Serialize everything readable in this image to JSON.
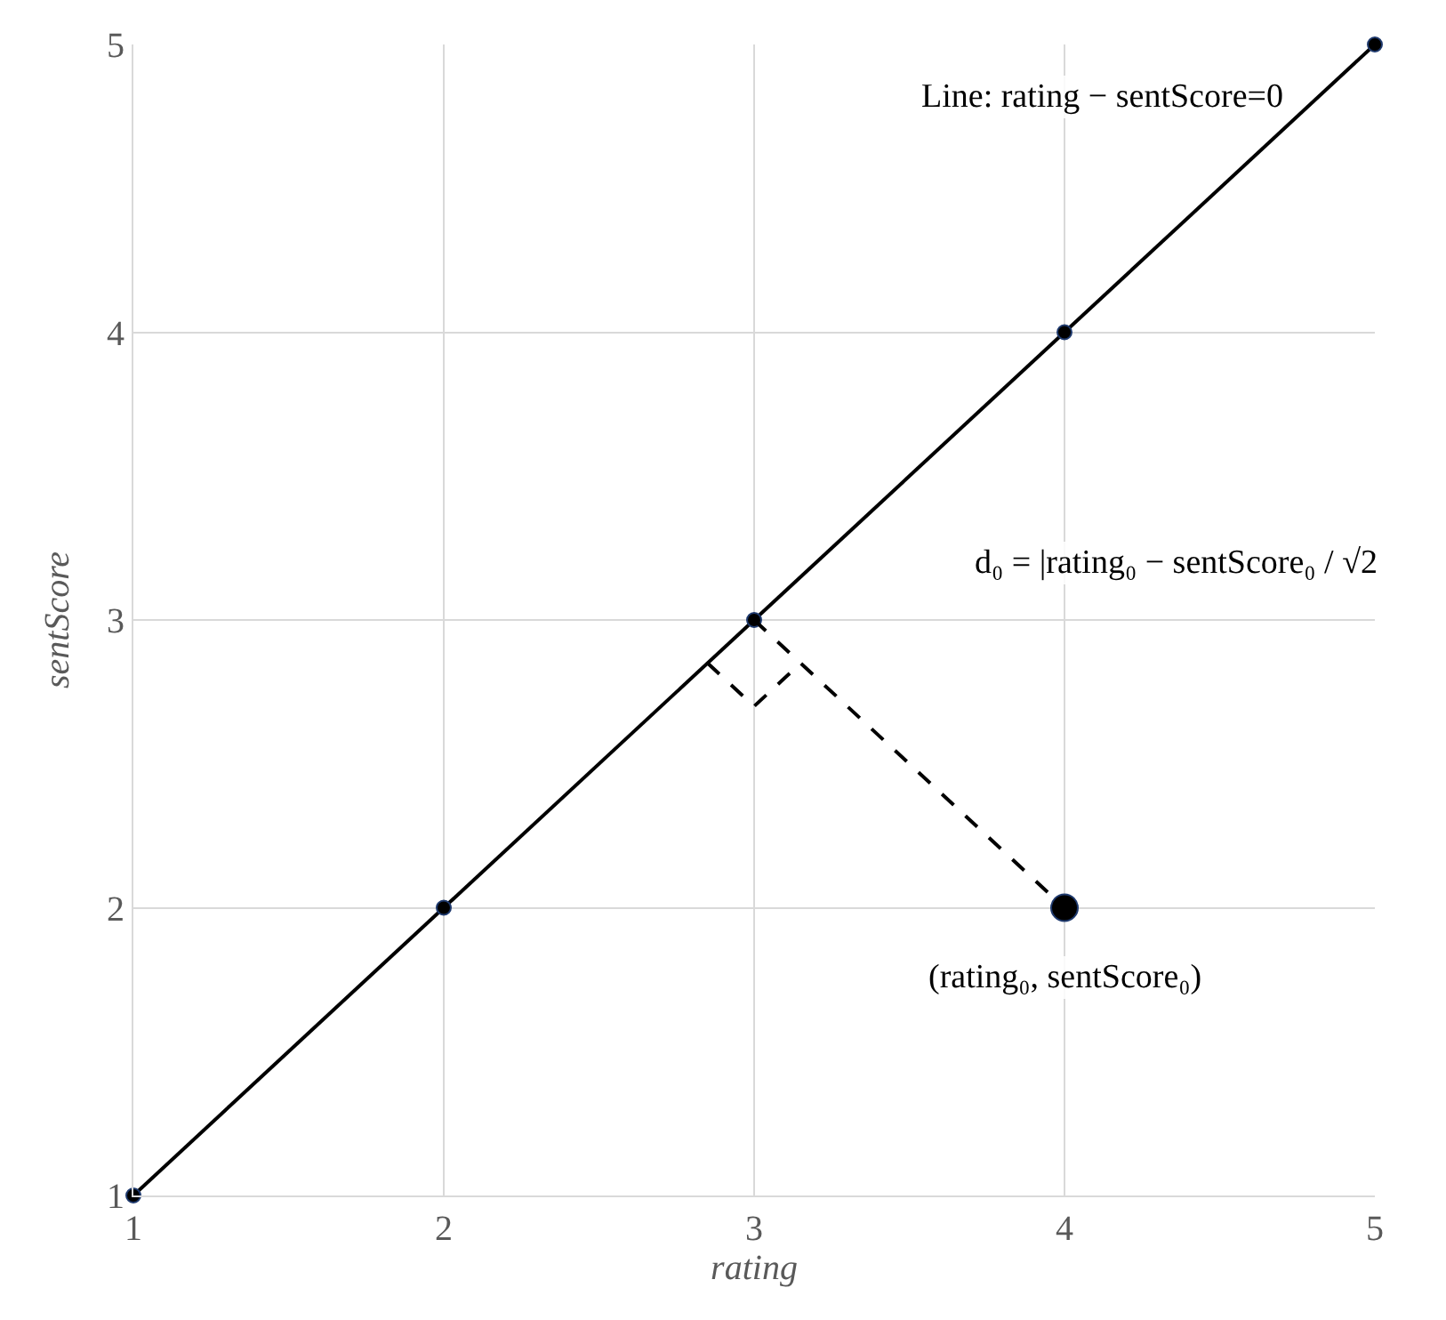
{
  "chart_data": {
    "type": "line",
    "xlabel": "rating",
    "ylabel": "sentScore",
    "xlim": [
      1,
      5
    ],
    "ylim": [
      1,
      5
    ],
    "xticks": [
      1,
      2,
      3,
      4,
      5
    ],
    "yticks": [
      1,
      2,
      3,
      4,
      5
    ],
    "grid": true,
    "series": [
      {
        "x": [
          1,
          2,
          3,
          4,
          5
        ],
        "values": [
          1,
          2,
          3,
          4,
          5
        ],
        "color": "#000000",
        "marker": "circle",
        "line_style": "solid"
      },
      {
        "type": "line",
        "x": [
          3,
          4
        ],
        "values": [
          3,
          2
        ],
        "color": "#000000",
        "marker": "none",
        "line_style": "dashed"
      },
      {
        "type": "line",
        "x": [
          2.85,
          3,
          3.15
        ],
        "values": [
          2.85,
          2.7,
          2.85
        ],
        "color": "#000000",
        "marker": "none",
        "line_style": "dashed"
      },
      {
        "type": "scatter",
        "x": [
          4
        ],
        "values": [
          2
        ],
        "color": "#000000",
        "marker": "circle"
      }
    ],
    "annotations": [
      "Line: rating − sentScore=0",
      "d₀ = |rating₀ − sentScore₀ / √2",
      "(rating₀, sentScore₀)"
    ]
  }
}
